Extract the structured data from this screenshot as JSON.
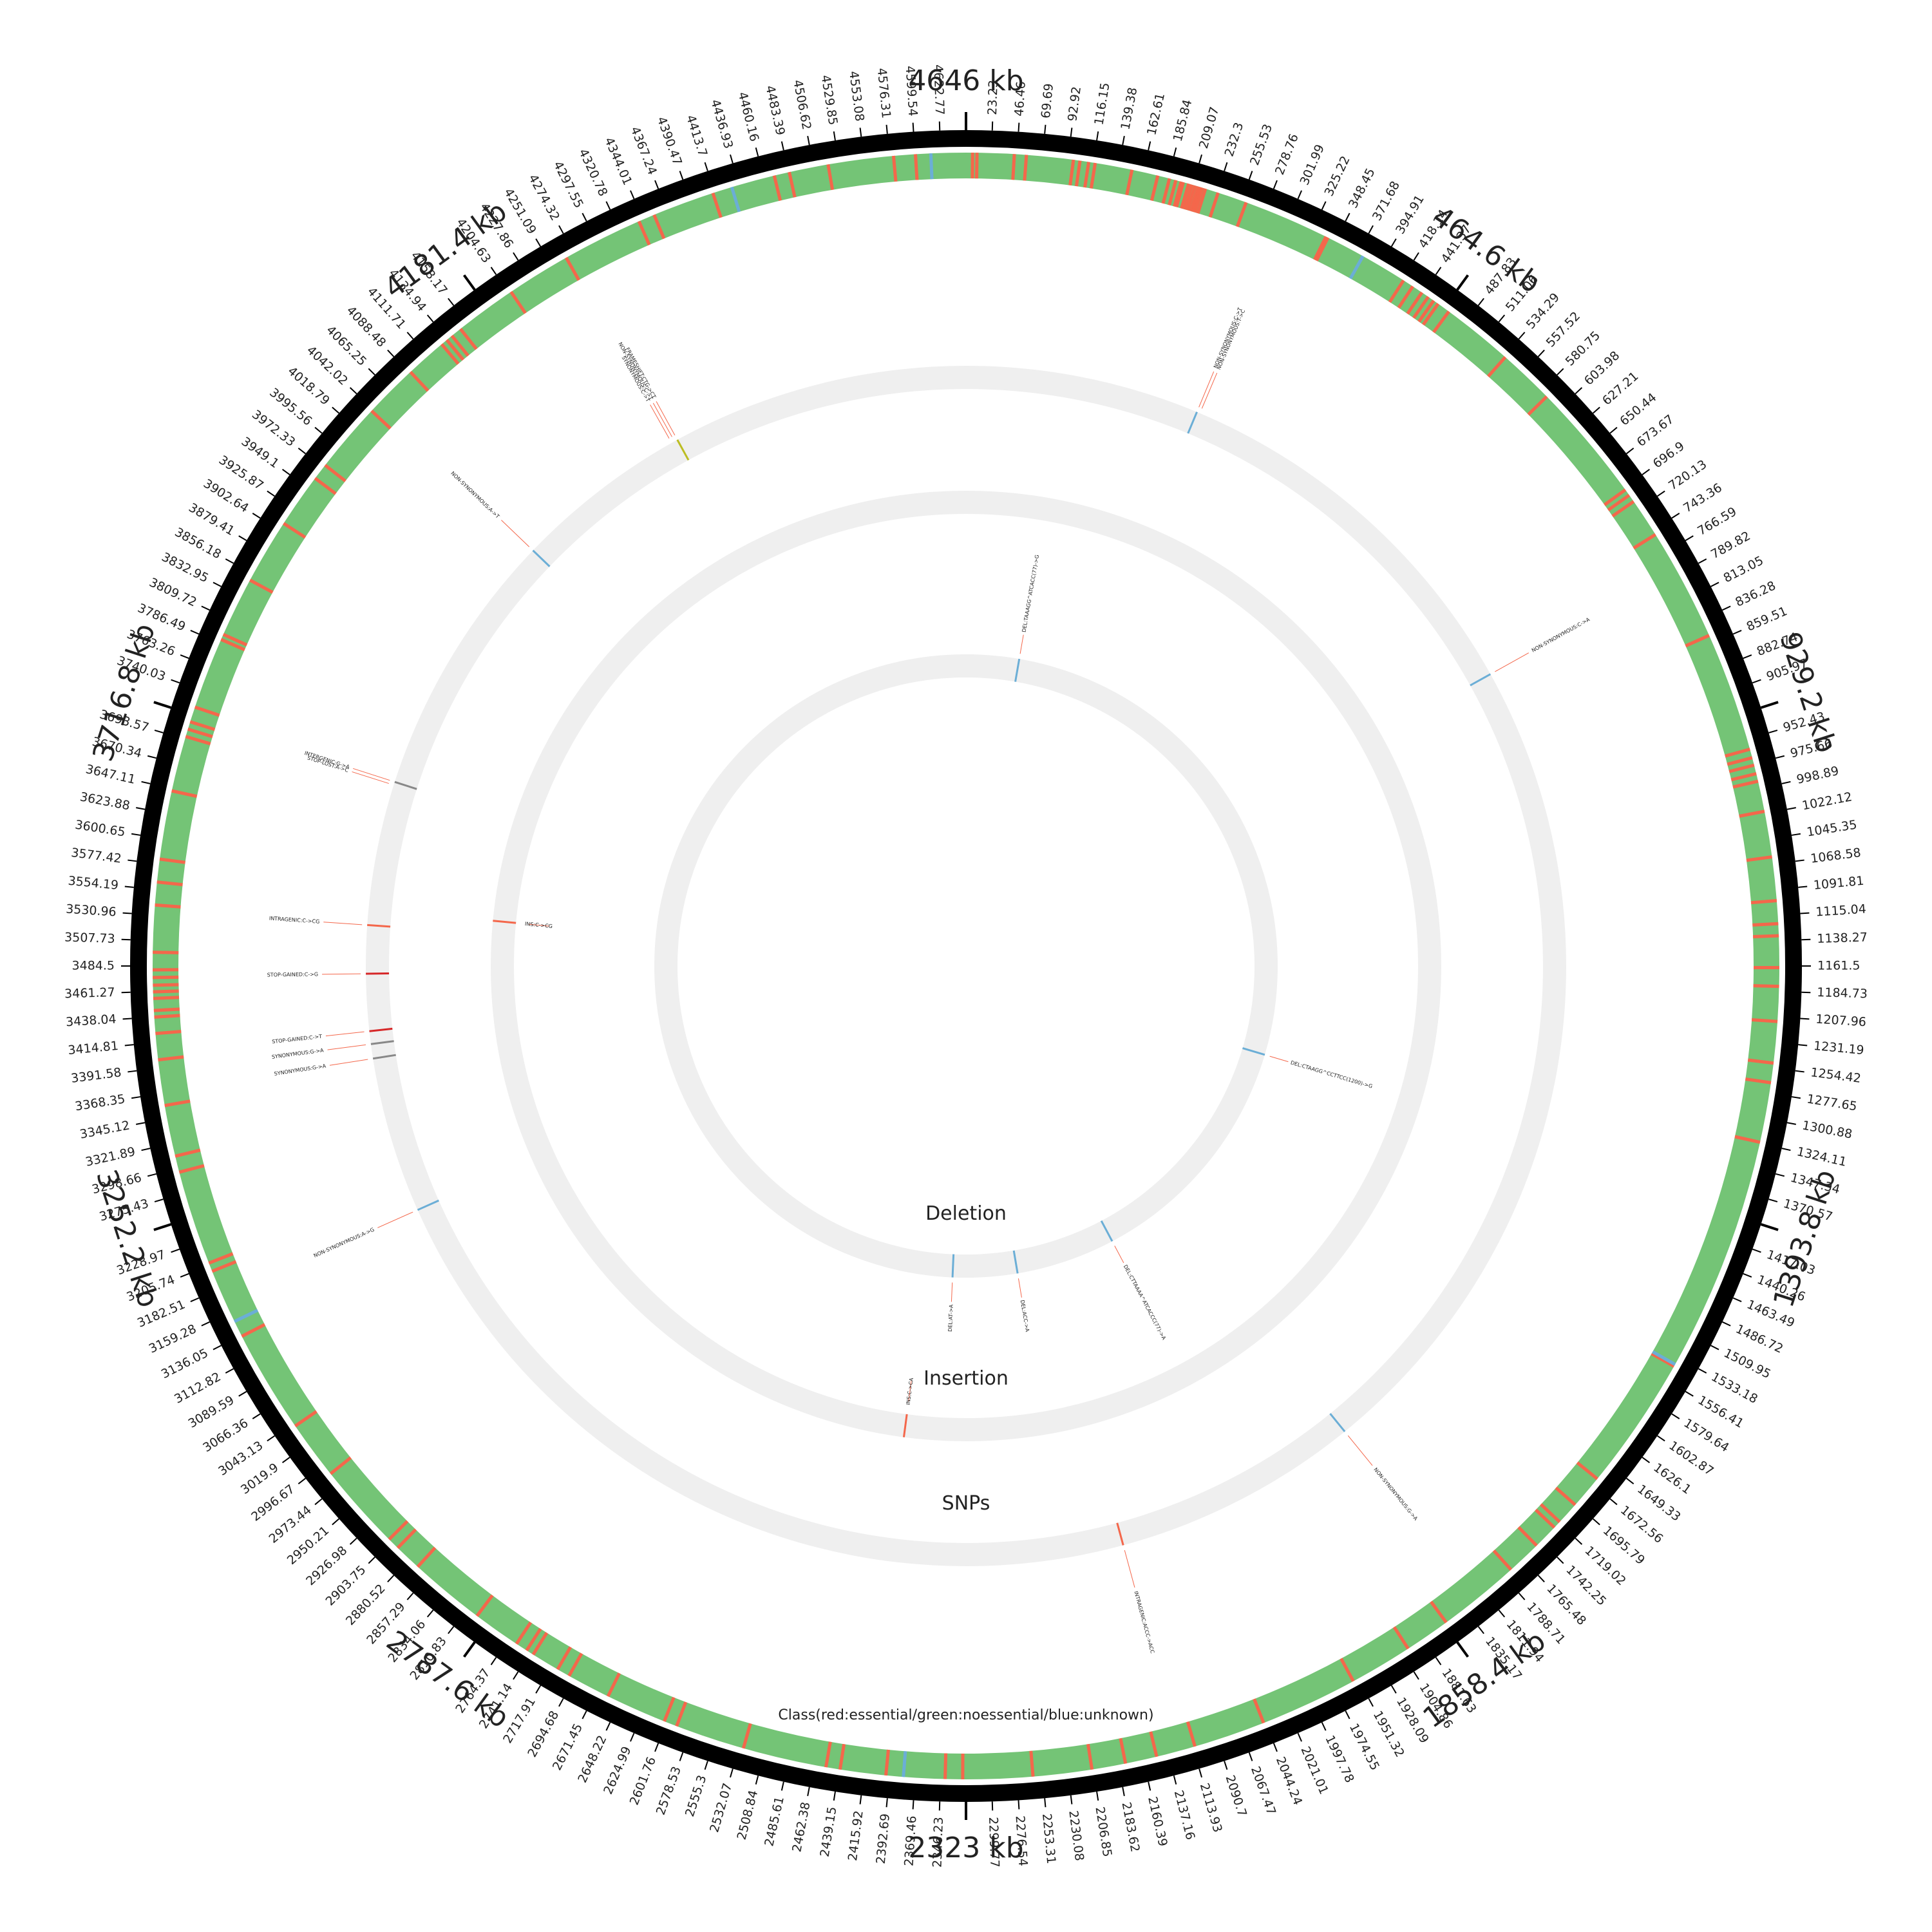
{
  "genome": {
    "length_kb": 4646,
    "major_ticks": [
      {
        "kb": 0,
        "label": "4646 kb"
      },
      {
        "kb": 464.6,
        "label": "464.6 kb"
      },
      {
        "kb": 929.2,
        "label": "929.2 kb"
      },
      {
        "kb": 1393.8,
        "label": "1393.8 kb"
      },
      {
        "kb": 1858.4,
        "label": "1858.4 kb"
      },
      {
        "kb": 2323,
        "label": "2323 kb"
      },
      {
        "kb": 2787.6,
        "label": "2787.6 kb"
      },
      {
        "kb": 3252.2,
        "label": "3252.2 kb"
      },
      {
        "kb": 3716.8,
        "label": "3716.8 kb"
      },
      {
        "kb": 4181.4,
        "label": "4181.4 kb"
      }
    ],
    "minor_tick_step_kb": 23.23
  },
  "tracks": {
    "class_label": "Class(red:essential/green:noessential/blue:unknown)",
    "snps_label": "SNPs",
    "insertion_label": "Insertion",
    "deletion_label": "Deletion"
  },
  "colors": {
    "essential": "#f4674b",
    "nonessential": "#74c476",
    "unknown": "#6baed6",
    "track_bg": "#efefef",
    "ideogram": "#000000"
  },
  "class_track": {
    "essential_kb": [
      6,
      10,
      44,
      55,
      98,
      104,
      112,
      118,
      152,
      176,
      187,
      193,
      198,
      200,
      205,
      208,
      211,
      214,
      216,
      218,
      221,
      233,
      260,
      339,
      341,
      420,
      430,
      440,
      447,
      453,
      458,
      470,
      536,
      588,
      699,
      705,
      712,
      748,
      852,
      962,
      970,
      977,
      985,
      992,
      1020,
      1062,
      1102,
      1123,
      1134,
      1163,
      1180,
      1212,
      1250,
      1268,
      1323,
      1542,
      1666,
      1697,
      1718,
      1725,
      1748,
      1780,
      1856,
      1898,
      1956,
      2046,
      2112,
      2148,
      2177,
      2208,
      2262,
      2326,
      2342,
      2396,
      2438,
      2451,
      2528,
      2592,
      2604,
      2660,
      2700,
      2712,
      2738,
      2745,
      2756,
      2800,
      2870,
      2895,
      2906,
      2986,
      3040,
      3135,
      3200,
      3208,
      3295,
      3310,
      3357,
      3399,
      3423,
      3438,
      3444,
      3455,
      3461,
      3467,
      3474,
      3481,
      3497,
      3540,
      3561,
      3582,
      3645,
      3696,
      3703,
      3710,
      3724,
      3790,
      3795,
      3850,
      3910,
      3960,
      3975,
      4040,
      4090,
      4128,
      4134,
      4140,
      4150,
      4207,
      4266,
      4340,
      4355,
      4412,
      4470,
      4484,
      4520,
      4580,
      4600
    ],
    "unknown_kb": [
      377,
      1540,
      2380,
      3150,
      4430,
      4614
    ]
  },
  "snps": [
    {
      "kb": 292,
      "color": "#6baed6",
      "labels": [
        "NON-SYNONYMOUS:C->T",
        "NON-SYNONYMOUS:T->C"
      ]
    },
    {
      "kb": 786,
      "color": "#6baed6",
      "labels": [
        "NON-SYNONYMOUS:C->A"
      ]
    },
    {
      "kb": 1818,
      "color": "#6baed6",
      "labels": [
        "NON-SYNONYMOUS:G->A"
      ]
    },
    {
      "kb": 2127,
      "color": "#f4674b",
      "labels": [
        "INTRAGENIC:ACCC->ACC"
      ]
    },
    {
      "kb": 3175,
      "color": "#6baed6",
      "labels": [
        "NON-SYNONYMOUS:A->G"
      ]
    },
    {
      "kb": 3370,
      "color": "#888888",
      "labels": [
        "SYNONYMOUS:G->A"
      ]
    },
    {
      "kb": 3388,
      "color": "#888888",
      "labels": [
        "SYNONYMOUS:G->A"
      ]
    },
    {
      "kb": 3404,
      "color": "#d62728",
      "labels": [
        "STOP-GAINED:C->T"
      ]
    },
    {
      "kb": 3475,
      "color": "#d62728",
      "labels": [
        "STOP-GAINED:C->G"
      ]
    },
    {
      "kb": 3535,
      "color": "#f4674b",
      "labels": [
        "INTRAGENIC:C->CG"
      ]
    },
    {
      "kb": 3715,
      "color": "#888888",
      "labels": [
        "INTERGENIC:G->A",
        "STOP-LOST:A->C"
      ]
    },
    {
      "kb": 4050,
      "color": "#6baed6",
      "labels": [
        "NON-SYNONYMOUS:A->T"
      ]
    },
    {
      "kb": 4275,
      "color": "#bcbd22",
      "labels": [
        "FRAMESHIFT:CTG->CT",
        "NON-SYNONYMOUS:C->T",
        "SYNONYMOUS:C->T"
      ]
    }
  ],
  "insertions": [
    {
      "kb": 2420,
      "color": "#f4674b",
      "label": "INS:C->CA"
    },
    {
      "kb": 3555,
      "color": "#f4674b",
      "label": "INS:C->CG"
    }
  ],
  "deletions": [
    {
      "kb": 127,
      "color": "#6baed6",
      "label": "DEL:TAAAGG^ATCACC(77)->G"
    },
    {
      "kb": 1375,
      "color": "#6baed6",
      "label": "DEL:CTAAGG^CCTTCC(1200)->G"
    },
    {
      "kb": 1962,
      "color": "#6baed6",
      "label": "DEL:CTTAAAA^ATCACCC(77)->A"
    },
    {
      "kb": 2200,
      "color": "#6baed6",
      "label": "DEL:ACC->A"
    },
    {
      "kb": 2355,
      "color": "#6baed6",
      "label": "DEL:AT->A"
    }
  ]
}
